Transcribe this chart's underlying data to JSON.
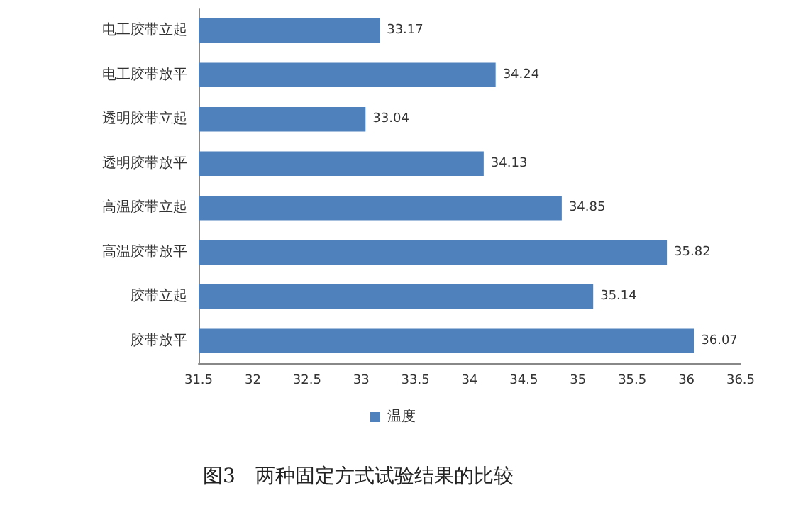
{
  "chart_data": {
    "type": "bar",
    "orientation": "horizontal",
    "title": "图3　两种固定方式试验结果的比较",
    "categories": [
      "电工胶带立起",
      "电工胶带放平",
      "透明胶带立起",
      "透明胶带放平",
      "高温胶带立起",
      "高温胶带放平",
      "胶带立起",
      "胶带放平"
    ],
    "series": [
      {
        "name": "温度",
        "color": "#4f81bd",
        "values": [
          33.17,
          34.24,
          33.04,
          34.13,
          34.85,
          35.82,
          35.14,
          36.07
        ]
      }
    ],
    "xlim": [
      31.5,
      36.5
    ],
    "xticks": [
      31.5,
      32,
      32.5,
      33,
      33.5,
      34,
      34.5,
      35,
      35.5,
      36,
      36.5
    ],
    "data_labels": true,
    "grid": false,
    "legend": "bottom"
  }
}
